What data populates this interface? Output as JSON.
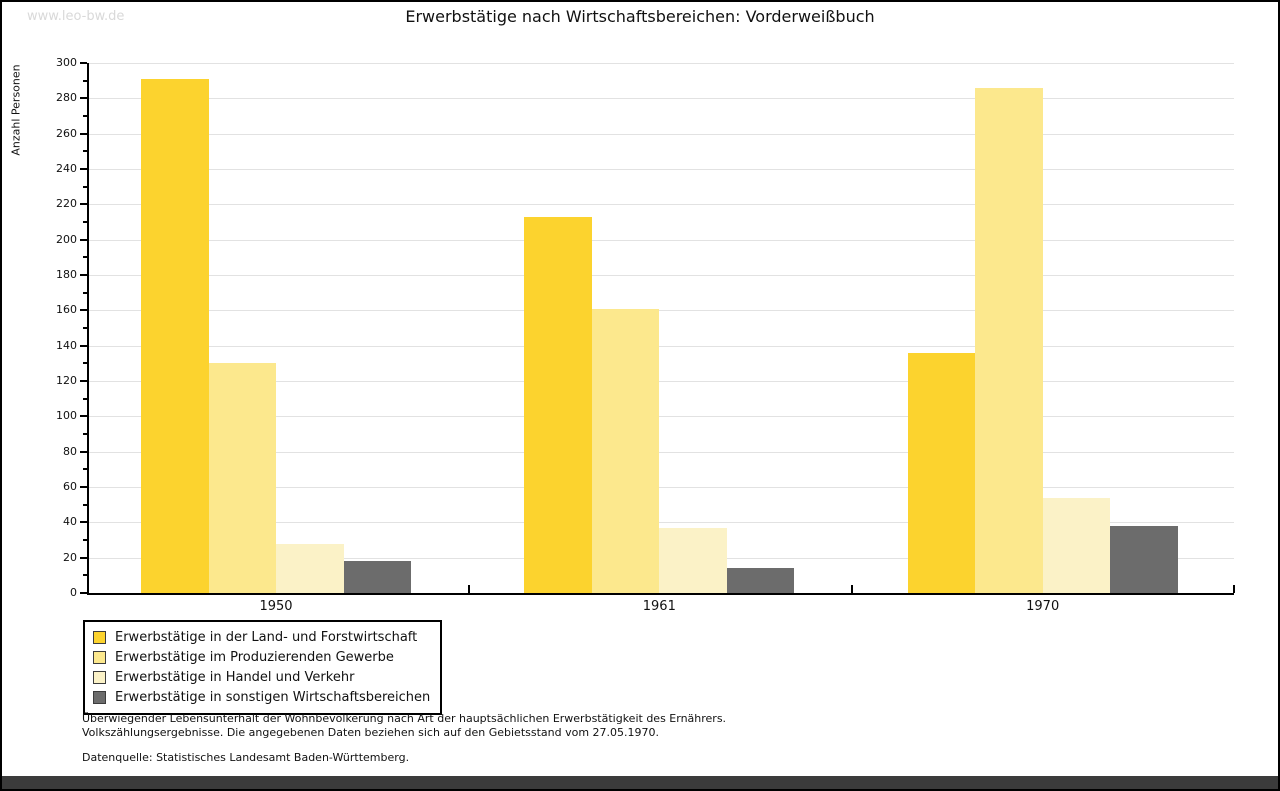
{
  "watermark": "www.leo-bw.de",
  "chart_data": {
    "type": "bar",
    "title": "Erwerbstätige nach Wirtschaftsbereichen: Vorderweißbuch",
    "ylabel": "Anzahl Personen",
    "categories": [
      "1950",
      "1961",
      "1970"
    ],
    "series": [
      {
        "name": "Erwerbstätige in der Land- und Forstwirtschaft",
        "color": "#fcd32e",
        "values": [
          291,
          213,
          136
        ]
      },
      {
        "name": "Erwerbstätige im Produzierenden Gewerbe",
        "color": "#fce88d",
        "values": [
          130,
          161,
          286
        ]
      },
      {
        "name": "Erwerbstätige in Handel und Verkehr",
        "color": "#fbf2c7",
        "values": [
          28,
          37,
          54
        ]
      },
      {
        "name": "Erwerbstätige in sonstigen Wirtschaftsbereichen",
        "color": "#6c6c6c",
        "values": [
          18,
          14,
          38
        ]
      }
    ],
    "ylim": [
      0,
      300
    ],
    "ytick_step": 20,
    "y_minor_step": 10,
    "grid": true,
    "legend_position": "bottom-left"
  },
  "footnotes": {
    "line1": "Überwiegender Lebensunterhalt der Wohnbevölkerung nach Art der hauptsächlichen Erwerbstätigkeit des Ernährers.",
    "line2": "Volkszählungsergebnisse. Die angegebenen Daten beziehen sich auf den Gebietsstand vom 27.05.1970.",
    "source": "Datenquelle: Statistisches Landesamt Baden-Württemberg."
  }
}
